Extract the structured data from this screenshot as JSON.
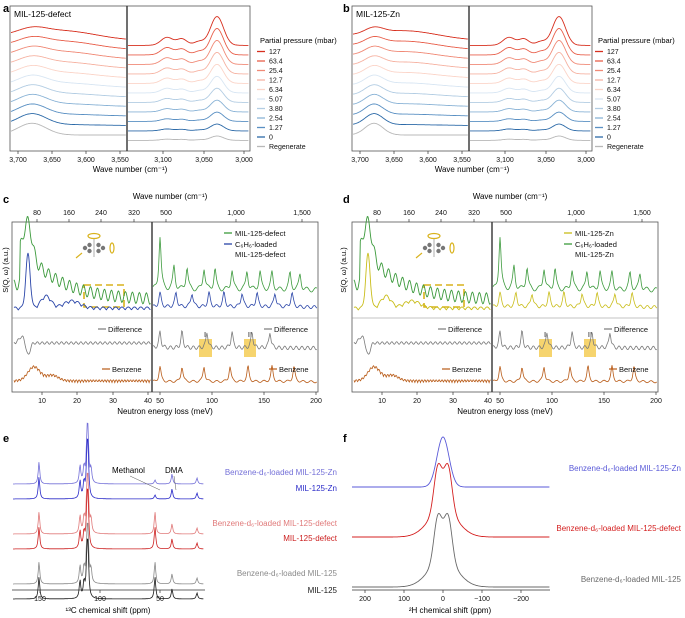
{
  "panels": {
    "a": {
      "letter": "a",
      "sample": "MIL-125-defect"
    },
    "b": {
      "letter": "b",
      "sample": "MIL-125-Zn"
    },
    "c": {
      "letter": "c"
    },
    "d": {
      "letter": "d"
    },
    "e": {
      "letter": "e"
    },
    "f": {
      "letter": "f"
    }
  },
  "ir": {
    "legend_title": "Partial pressure (mbar)",
    "pressures": [
      "127",
      "63.4",
      "25.4",
      "12.7",
      "6.34",
      "5.07",
      "3.80",
      "2.54",
      "1.27",
      "0",
      "Regenerate"
    ],
    "colors": [
      "#d7301f",
      "#e8604c",
      "#f08a77",
      "#f6b3a3",
      "#fbd5c9",
      "#d8e6f3",
      "#b3cde3",
      "#8ab3d6",
      "#5a90c3",
      "#2c6aa8",
      "#b8b8b8"
    ],
    "xlabel": "Wave number (cm⁻¹)",
    "left_ticks": [
      "3,700",
      "3,650",
      "3,600",
      "3,550"
    ],
    "right_ticks": [
      "3,100",
      "3,050",
      "3,000"
    ]
  },
  "ins": {
    "top_axis_label": "Wave number (cm⁻¹)",
    "top_ticks_left": [
      "80",
      "160",
      "240",
      "320"
    ],
    "top_ticks_right": [
      "500",
      "1,000",
      "1,500"
    ],
    "ylabel": "S(Q, ω) (a.u.)",
    "xlabel": "Neutron energy loss (meV)",
    "bottom_ticks_left": [
      "10",
      "20",
      "30",
      "40"
    ],
    "bottom_ticks_right": [
      "50",
      "100",
      "150",
      "200"
    ],
    "difference_label": "Difference",
    "benzene_label": "Benzene",
    "mark_1": "I",
    "mark_2": "II",
    "c_legend": [
      "MIL-125-defect",
      "C₆H₆-loaded",
      "MIL-125-defect"
    ],
    "d_legend": [
      "MIL-125-Zn",
      "C₆H₆-loaded",
      "MIL-125-Zn"
    ],
    "colors": {
      "c_base": "#2a45a8",
      "c_loaded": "#3c9a3c",
      "d_base": "#c9bd1a",
      "d_loaded": "#3c9a3c",
      "difference": "#7a7a7a",
      "benzene": "#b85a16",
      "highlight": "#f5cc55",
      "dash": "#d9b21c"
    }
  },
  "nmr13c": {
    "xlabel": "¹³C chemical shift (ppm)",
    "ticks": [
      "150",
      "100",
      "50"
    ],
    "peak_labels": [
      "Methanol",
      "DMA"
    ],
    "labels": [
      "Benzene-d₆-loaded MIL-125-Zn",
      "MIL-125-Zn",
      "Benzene-d₆-loaded MIL-125-defect",
      "MIL-125-defect",
      "Benzene-d₆-loaded MIL-125",
      "MIL-125"
    ],
    "colors": [
      "#7470d8",
      "#2a2ac8",
      "#e07a7a",
      "#cc2020",
      "#8a8a8a",
      "#1a1a1a"
    ]
  },
  "nmr2h": {
    "xlabel": "²H chemical shift (ppm)",
    "ticks": [
      "200",
      "100",
      "0",
      "−100",
      "−200"
    ],
    "labels": [
      "Benzene-d₆-loaded MIL-125-Zn",
      "Benzene-d₆-loaded MIL-125-defect",
      "Benzene-d₆-loaded MIL-125"
    ],
    "colors": [
      "#5a5ad8",
      "#d42020",
      "#6a6a6a"
    ]
  }
}
